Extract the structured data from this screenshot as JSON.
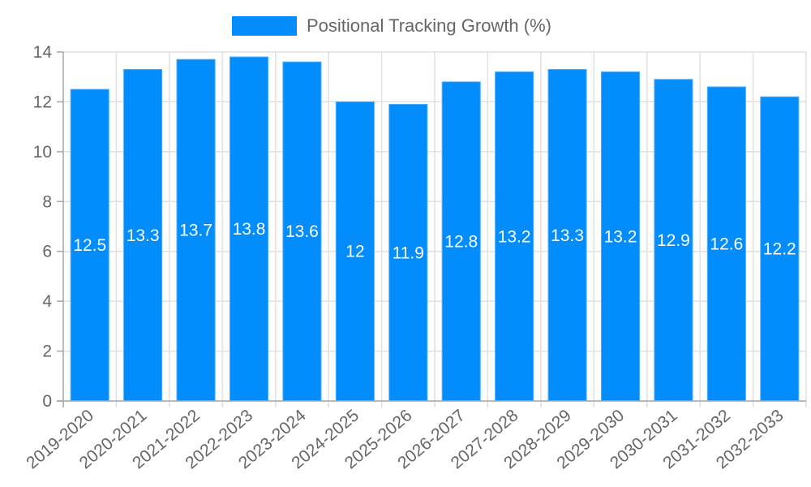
{
  "legend": {
    "label": "Positional Tracking Growth (%)",
    "color": "#038cfb"
  },
  "colors": {
    "bar": "#038cfb",
    "bar_border": "#4fb0ff",
    "grid": "#e0e0e0",
    "axis": "#a8a8a8",
    "tick_text": "#666666",
    "value_text": "#ffffff"
  },
  "chart_data": {
    "type": "bar",
    "title": "",
    "xlabel": "",
    "ylabel": "",
    "ylim": [
      0,
      14
    ],
    "yticks": [
      0,
      2,
      4,
      6,
      8,
      10,
      12,
      14
    ],
    "grid": true,
    "legend_position": "top",
    "categories": [
      "2019-2020",
      "2020-2021",
      "2021-2022",
      "2022-2023",
      "2023-2024",
      "2024-2025",
      "2025-2026",
      "2026-2027",
      "2027-2028",
      "2028-2029",
      "2029-2030",
      "2030-2031",
      "2031-2032",
      "2032-2033"
    ],
    "series": [
      {
        "name": "Positional Tracking Growth (%)",
        "values": [
          12.5,
          13.3,
          13.7,
          13.8,
          13.6,
          12,
          11.9,
          12.8,
          13.2,
          13.3,
          13.2,
          12.9,
          12.6,
          12.2
        ]
      }
    ],
    "value_labels": [
      "12.5",
      "13.3",
      "13.7",
      "13.8",
      "13.6",
      "12",
      "11.9",
      "12.8",
      "13.2",
      "13.3",
      "13.2",
      "12.9",
      "12.6",
      "12.2"
    ]
  }
}
